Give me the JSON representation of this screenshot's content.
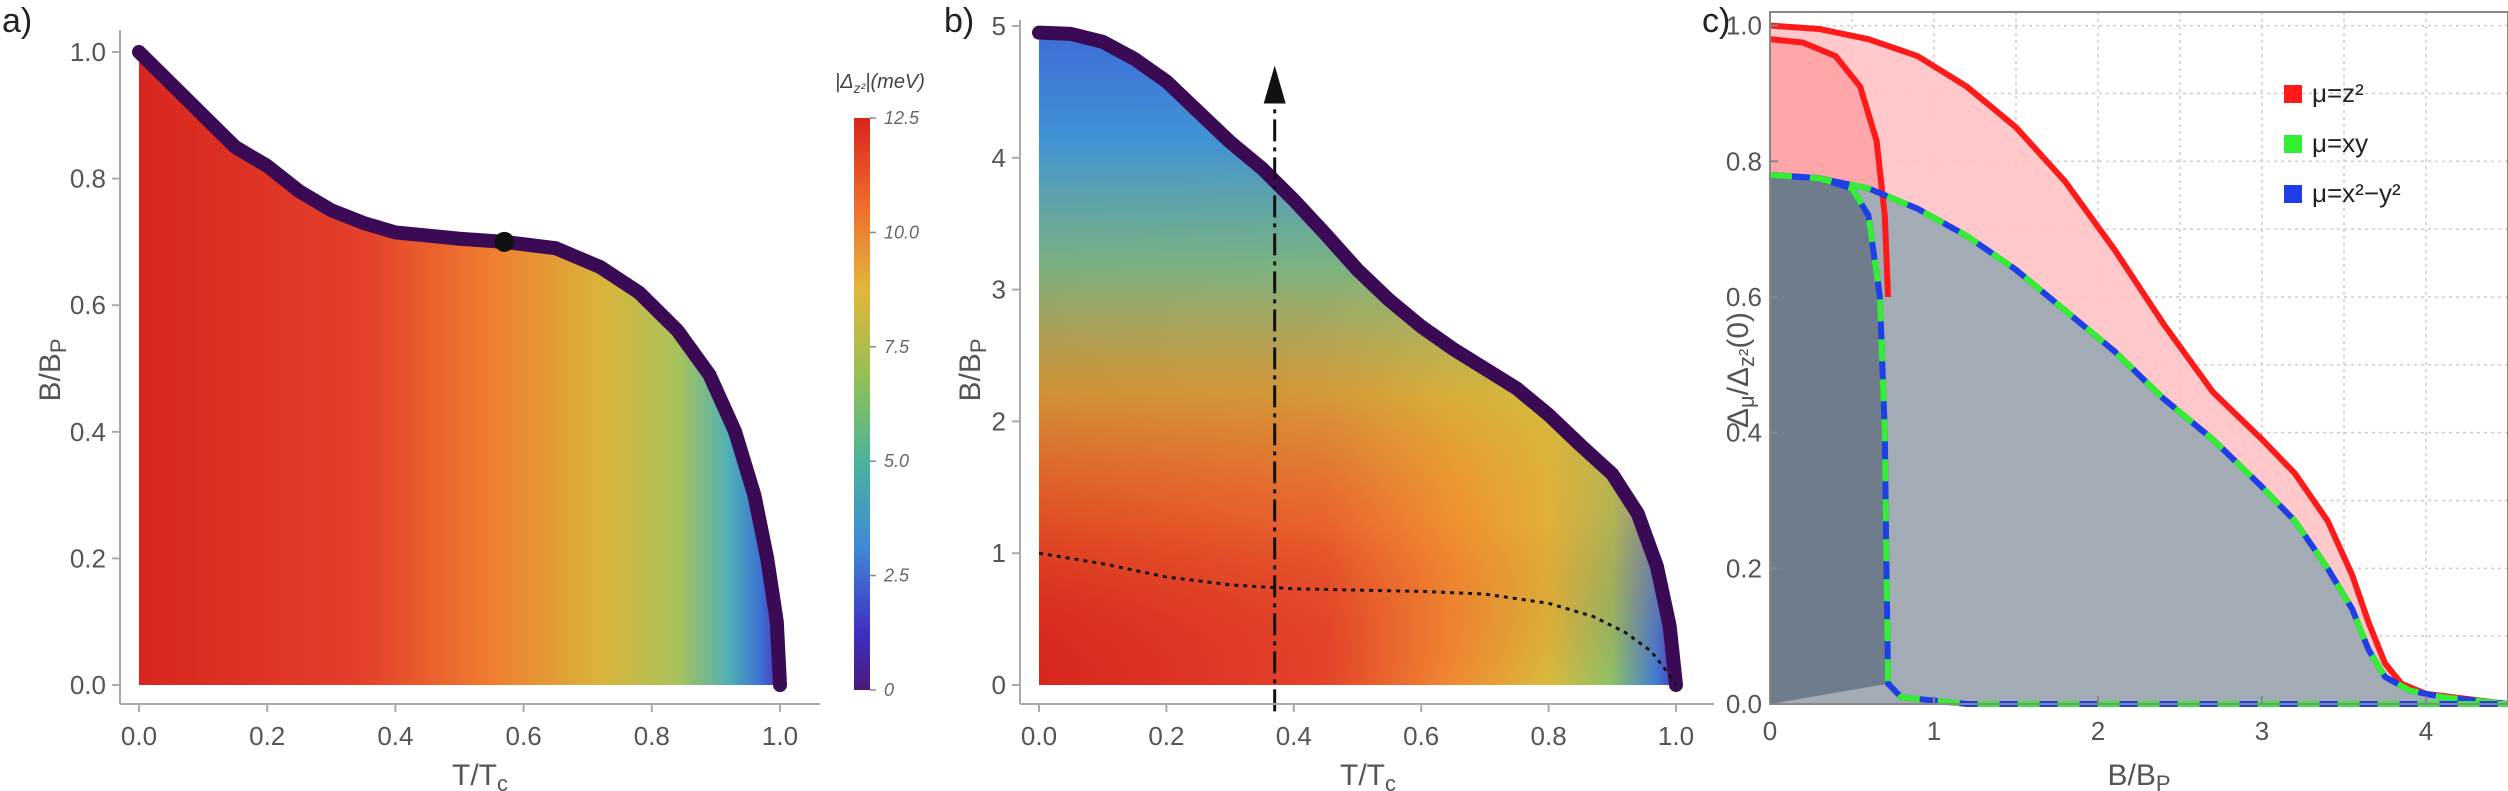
{
  "chart_data": [
    {
      "panel_label": "a)",
      "type": "heatmap",
      "xlabel": "T/T",
      "xlabel_sub": "c",
      "ylabel": "B/B",
      "ylabel_sub": "P",
      "xlim": [
        0,
        1.05
      ],
      "ylim": [
        0,
        1.05
      ],
      "xticks": [
        "0.0",
        "0.2",
        "0.4",
        "0.6",
        "0.8",
        "1.0"
      ],
      "yticks": [
        "0.0",
        "0.2",
        "0.4",
        "0.6",
        "0.8",
        "1.0"
      ],
      "boundary": [
        {
          "x": 0.0,
          "y": 1.0
        },
        {
          "x": 0.04,
          "y": 0.96
        },
        {
          "x": 0.1,
          "y": 0.9
        },
        {
          "x": 0.15,
          "y": 0.85
        },
        {
          "x": 0.2,
          "y": 0.82
        },
        {
          "x": 0.25,
          "y": 0.78
        },
        {
          "x": 0.3,
          "y": 0.75
        },
        {
          "x": 0.35,
          "y": 0.73
        },
        {
          "x": 0.4,
          "y": 0.715
        },
        {
          "x": 0.45,
          "y": 0.71
        },
        {
          "x": 0.5,
          "y": 0.705
        },
        {
          "x": 0.57,
          "y": 0.7
        },
        {
          "x": 0.65,
          "y": 0.69
        },
        {
          "x": 0.72,
          "y": 0.66
        },
        {
          "x": 0.78,
          "y": 0.62
        },
        {
          "x": 0.84,
          "y": 0.56
        },
        {
          "x": 0.89,
          "y": 0.49
        },
        {
          "x": 0.93,
          "y": 0.4
        },
        {
          "x": 0.96,
          "y": 0.3
        },
        {
          "x": 0.98,
          "y": 0.2
        },
        {
          "x": 0.995,
          "y": 0.1
        },
        {
          "x": 1.0,
          "y": 0.0
        }
      ],
      "marker": {
        "x": 0.57,
        "y": 0.7
      }
    },
    {
      "panel_label": "b)",
      "type": "heatmap",
      "xlabel": "T/T",
      "xlabel_sub": "c",
      "ylabel": "B/B",
      "ylabel_sub": "P",
      "xlim": [
        0,
        1.05
      ],
      "ylim": [
        0,
        5.1
      ],
      "xticks": [
        "0.0",
        "0.2",
        "0.4",
        "0.6",
        "0.8",
        "1.0"
      ],
      "yticks": [
        "0",
        "1",
        "2",
        "3",
        "4",
        "5"
      ],
      "boundary": [
        {
          "x": 0.0,
          "y": 4.95
        },
        {
          "x": 0.05,
          "y": 4.94
        },
        {
          "x": 0.1,
          "y": 4.88
        },
        {
          "x": 0.15,
          "y": 4.75
        },
        {
          "x": 0.2,
          "y": 4.58
        },
        {
          "x": 0.25,
          "y": 4.35
        },
        {
          "x": 0.3,
          "y": 4.12
        },
        {
          "x": 0.35,
          "y": 3.92
        },
        {
          "x": 0.4,
          "y": 3.68
        },
        {
          "x": 0.45,
          "y": 3.42
        },
        {
          "x": 0.5,
          "y": 3.15
        },
        {
          "x": 0.55,
          "y": 2.92
        },
        {
          "x": 0.6,
          "y": 2.72
        },
        {
          "x": 0.65,
          "y": 2.55
        },
        {
          "x": 0.7,
          "y": 2.4
        },
        {
          "x": 0.75,
          "y": 2.25
        },
        {
          "x": 0.8,
          "y": 2.05
        },
        {
          "x": 0.85,
          "y": 1.82
        },
        {
          "x": 0.9,
          "y": 1.6
        },
        {
          "x": 0.94,
          "y": 1.3
        },
        {
          "x": 0.97,
          "y": 0.9
        },
        {
          "x": 0.99,
          "y": 0.45
        },
        {
          "x": 1.0,
          "y": 0.0
        }
      ],
      "dotted_curve": [
        {
          "x": 0.0,
          "y": 1.0
        },
        {
          "x": 0.1,
          "y": 0.92
        },
        {
          "x": 0.2,
          "y": 0.82
        },
        {
          "x": 0.3,
          "y": 0.76
        },
        {
          "x": 0.4,
          "y": 0.73
        },
        {
          "x": 0.5,
          "y": 0.72
        },
        {
          "x": 0.6,
          "y": 0.71
        },
        {
          "x": 0.7,
          "y": 0.69
        },
        {
          "x": 0.8,
          "y": 0.62
        },
        {
          "x": 0.87,
          "y": 0.52
        },
        {
          "x": 0.92,
          "y": 0.4
        },
        {
          "x": 0.96,
          "y": 0.26
        },
        {
          "x": 0.98,
          "y": 0.14
        },
        {
          "x": 1.0,
          "y": 0.0
        }
      ],
      "arrow_x": 0.37,
      "arrow_y_start": -0.2,
      "arrow_y_end": 4.7
    },
    {
      "panel_label": "c)",
      "type": "area",
      "xlabel": "B/B",
      "xlabel_sub": "P",
      "ylabel_main": "Δ",
      "ylabel_sub1": "μ",
      "ylabel_mid": "/Δ",
      "ylabel_sub2": "z²",
      "ylabel_end": "(0)",
      "xlim": [
        0,
        4.5
      ],
      "ylim": [
        0,
        1.02
      ],
      "xticks": [
        "0",
        "1",
        "2",
        "3",
        "4"
      ],
      "yticks": [
        "0.0",
        "0.2",
        "0.4",
        "0.6",
        "0.8",
        "1.0"
      ],
      "grid": true,
      "legend_position": "top-right",
      "series": [
        {
          "name": "μ=z²",
          "color": "#ff1a1a",
          "style": "solid",
          "points": [
            {
              "x": 0.0,
              "y": 1.0
            },
            {
              "x": 0.3,
              "y": 0.995
            },
            {
              "x": 0.6,
              "y": 0.98
            },
            {
              "x": 0.9,
              "y": 0.955
            },
            {
              "x": 1.2,
              "y": 0.91
            },
            {
              "x": 1.5,
              "y": 0.85
            },
            {
              "x": 1.8,
              "y": 0.77
            },
            {
              "x": 2.1,
              "y": 0.67
            },
            {
              "x": 2.4,
              "y": 0.56
            },
            {
              "x": 2.7,
              "y": 0.46
            },
            {
              "x": 3.0,
              "y": 0.39
            },
            {
              "x": 3.2,
              "y": 0.34
            },
            {
              "x": 3.4,
              "y": 0.27
            },
            {
              "x": 3.55,
              "y": 0.19
            },
            {
              "x": 3.65,
              "y": 0.12
            },
            {
              "x": 3.75,
              "y": 0.06
            },
            {
              "x": 3.85,
              "y": 0.03
            },
            {
              "x": 4.0,
              "y": 0.015
            },
            {
              "x": 4.5,
              "y": 0.0
            }
          ],
          "inner_branch": [
            {
              "x": 0.0,
              "y": 0.98
            },
            {
              "x": 0.2,
              "y": 0.975
            },
            {
              "x": 0.4,
              "y": 0.955
            },
            {
              "x": 0.55,
              "y": 0.91
            },
            {
              "x": 0.65,
              "y": 0.83
            },
            {
              "x": 0.7,
              "y": 0.72
            },
            {
              "x": 0.72,
              "y": 0.6
            }
          ]
        },
        {
          "name": "μ=xy",
          "color": "#33ee33",
          "style": "dashed",
          "points": [
            {
              "x": 0.0,
              "y": 0.78
            },
            {
              "x": 0.3,
              "y": 0.775
            },
            {
              "x": 0.6,
              "y": 0.76
            },
            {
              "x": 0.9,
              "y": 0.73
            },
            {
              "x": 1.2,
              "y": 0.69
            },
            {
              "x": 1.5,
              "y": 0.64
            },
            {
              "x": 1.8,
              "y": 0.58
            },
            {
              "x": 2.1,
              "y": 0.52
            },
            {
              "x": 2.4,
              "y": 0.45
            },
            {
              "x": 2.7,
              "y": 0.39
            },
            {
              "x": 3.0,
              "y": 0.32
            },
            {
              "x": 3.2,
              "y": 0.27
            },
            {
              "x": 3.4,
              "y": 0.2
            },
            {
              "x": 3.55,
              "y": 0.14
            },
            {
              "x": 3.65,
              "y": 0.08
            },
            {
              "x": 3.75,
              "y": 0.04
            },
            {
              "x": 3.9,
              "y": 0.02
            },
            {
              "x": 4.1,
              "y": 0.01
            },
            {
              "x": 4.5,
              "y": 0.0
            }
          ]
        },
        {
          "name": "μ=x²−y²",
          "color": "#1f3fe6",
          "style": "dashed",
          "points": [
            {
              "x": 0.0,
              "y": 0.78
            },
            {
              "x": 0.3,
              "y": 0.775
            },
            {
              "x": 0.6,
              "y": 0.76
            },
            {
              "x": 0.9,
              "y": 0.73
            },
            {
              "x": 1.2,
              "y": 0.69
            },
            {
              "x": 1.5,
              "y": 0.64
            },
            {
              "x": 1.8,
              "y": 0.58
            },
            {
              "x": 2.1,
              "y": 0.52
            },
            {
              "x": 2.4,
              "y": 0.45
            },
            {
              "x": 2.7,
              "y": 0.39
            },
            {
              "x": 3.0,
              "y": 0.32
            },
            {
              "x": 3.2,
              "y": 0.27
            },
            {
              "x": 3.4,
              "y": 0.2
            },
            {
              "x": 3.55,
              "y": 0.14
            },
            {
              "x": 3.65,
              "y": 0.08
            },
            {
              "x": 3.75,
              "y": 0.04
            },
            {
              "x": 3.9,
              "y": 0.02
            },
            {
              "x": 4.1,
              "y": 0.01
            },
            {
              "x": 4.5,
              "y": 0.0
            }
          ],
          "inner_branch": [
            {
              "x": 0.0,
              "y": 0.78
            },
            {
              "x": 0.3,
              "y": 0.775
            },
            {
              "x": 0.5,
              "y": 0.76
            },
            {
              "x": 0.6,
              "y": 0.72
            },
            {
              "x": 0.67,
              "y": 0.6
            },
            {
              "x": 0.7,
              "y": 0.4
            },
            {
              "x": 0.71,
              "y": 0.2
            },
            {
              "x": 0.72,
              "y": 0.03
            },
            {
              "x": 0.8,
              "y": 0.01
            },
            {
              "x": 1.2,
              "y": 0.0
            },
            {
              "x": 4.5,
              "y": 0.0
            }
          ]
        }
      ]
    }
  ],
  "colorbar": {
    "label_main": "|Δ",
    "label_sub": "z²",
    "label_end": "|(meV)",
    "range": [
      0,
      12.5
    ],
    "ticks": [
      "12.5",
      "10.0",
      "7.5",
      "5.0",
      "2.5",
      "0"
    ],
    "tick_values": [
      12.5,
      10.0,
      7.5,
      5.0,
      2.5,
      0
    ]
  },
  "colors": {
    "boundary": "#3b0a55",
    "red_fill": "#ffc2c4",
    "gray_fill_light": "#a3abb4",
    "gray_fill_dark": "#6f7c8c",
    "marker": "#111111"
  }
}
